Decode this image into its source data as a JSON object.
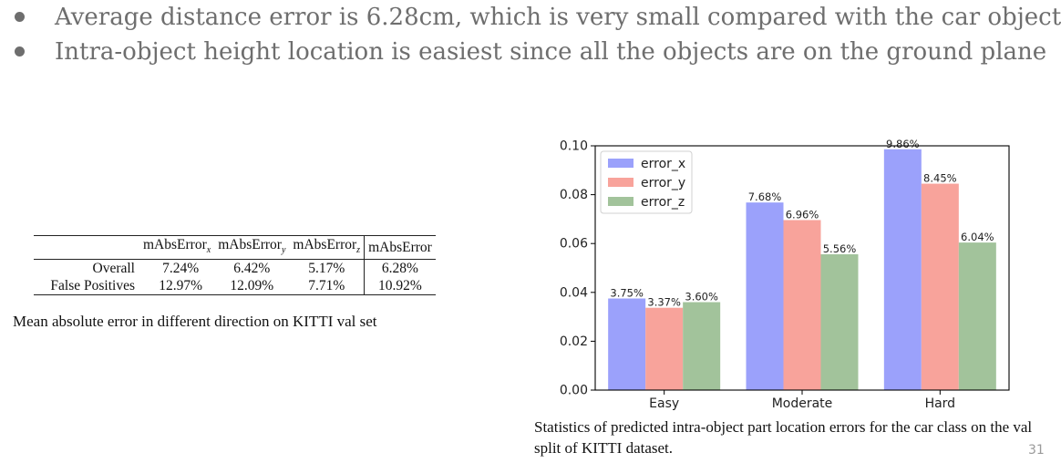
{
  "bullets": [
    "Average distance error is 6.28cm, which is very small compared with the car object",
    "Intra-object height location is easiest since all the objects are on the ground plane"
  ],
  "table": {
    "headers": [
      "",
      "mAbsErrorx",
      "mAbsErrory",
      "mAbsErrorz",
      "mAbsError"
    ],
    "header_parts": [
      {
        "base": "mAbsError",
        "sub": "x"
      },
      {
        "base": "mAbsError",
        "sub": "y"
      },
      {
        "base": "mAbsError",
        "sub": "z"
      },
      {
        "base": "mAbsError",
        "sub": ""
      }
    ],
    "rows": [
      {
        "label": "Overall",
        "cells": [
          "7.24%",
          "6.42%",
          "5.17%",
          "6.28%"
        ]
      },
      {
        "label": "False Positives",
        "cells": [
          "12.97%",
          "12.09%",
          "7.71%",
          "10.92%"
        ]
      }
    ],
    "caption": "Mean absolute error in different direction on KITTI val set"
  },
  "chart_data": {
    "type": "bar",
    "categories": [
      "Easy",
      "Moderate",
      "Hard"
    ],
    "series": [
      {
        "name": "error_x",
        "values": [
          0.0375,
          0.0768,
          0.0986
        ],
        "labels": [
          "3.75%",
          "7.68%",
          "9.86%"
        ],
        "color": "#9ba1fb"
      },
      {
        "name": "error_y",
        "values": [
          0.0337,
          0.0696,
          0.0845
        ],
        "labels": [
          "3.37%",
          "6.96%",
          "8.45%"
        ],
        "color": "#f8a39b"
      },
      {
        "name": "error_z",
        "values": [
          0.036,
          0.0556,
          0.0604
        ],
        "labels": [
          "3.60%",
          "5.56%",
          "6.04%"
        ],
        "color": "#a2c39b"
      }
    ],
    "y_ticks": [
      "0.00",
      "0.02",
      "0.04",
      "0.06",
      "0.08",
      "0.10"
    ],
    "ylim": [
      0,
      0.1
    ],
    "title": "",
    "xlabel": "",
    "ylabel": "",
    "legend_position": "top-left",
    "grid": false
  },
  "chart_caption": "Statistics of predicted intra-object part location errors for the car class on the val split of KITTI dataset.",
  "page_number": "31"
}
